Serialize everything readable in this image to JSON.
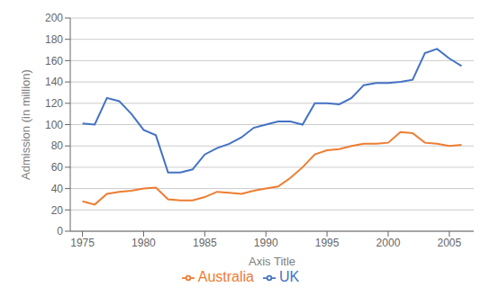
{
  "chart_data": {
    "type": "line",
    "xlabel": "Axis Title",
    "ylabel": "Admission (in million)",
    "x": [
      1975,
      1976,
      1977,
      1978,
      1979,
      1980,
      1981,
      1982,
      1983,
      1984,
      1985,
      1986,
      1987,
      1988,
      1989,
      1990,
      1991,
      1992,
      1993,
      1994,
      1995,
      1996,
      1997,
      1998,
      1999,
      2000,
      2001,
      2002,
      2003,
      2004,
      2005,
      2006
    ],
    "series": [
      {
        "name": "Australia",
        "color": "#ED7D31",
        "values": [
          28,
          25,
          35,
          37,
          38,
          40,
          41,
          30,
          29,
          29,
          32,
          37,
          36,
          35,
          38,
          40,
          42,
          50,
          60,
          72,
          76,
          77,
          80,
          82,
          82,
          83,
          93,
          92,
          83,
          82,
          80,
          81
        ]
      },
      {
        "name": "UK",
        "color": "#4472C4",
        "values": [
          101,
          100,
          125,
          122,
          110,
          95,
          90,
          55,
          55,
          58,
          72,
          78,
          82,
          88,
          97,
          100,
          103,
          103,
          100,
          120,
          120,
          119,
          125,
          137,
          139,
          139,
          140,
          142,
          167,
          171,
          162,
          155
        ]
      }
    ],
    "xlim": [
      1974,
      2007
    ],
    "xticks": [
      1975,
      1980,
      1985,
      1990,
      1995,
      2000,
      2005
    ],
    "ylim": [
      0,
      200
    ],
    "yticks": [
      0,
      20,
      40,
      60,
      80,
      100,
      120,
      140,
      160,
      180,
      200
    ],
    "grid": true,
    "legend": "bottom"
  }
}
